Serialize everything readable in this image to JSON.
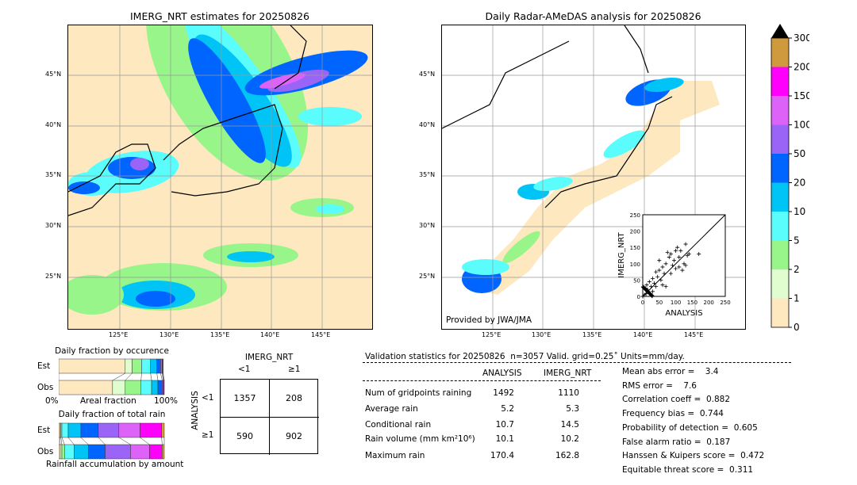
{
  "left_map": {
    "title": "IMERG_NRT estimates for 20250826",
    "lat_labels": [
      "45°N",
      "40°N",
      "35°N",
      "30°N",
      "25°N"
    ],
    "lon_labels": [
      "125°E",
      "130°E",
      "135°E",
      "140°E",
      "145°E"
    ]
  },
  "right_map": {
    "title": "Daily Radar-AMeDAS analysis for 20250826",
    "lat_labels": [
      "45°N",
      "40°N",
      "35°N",
      "30°N",
      "25°N"
    ],
    "lon_labels": [
      "125°E",
      "130°E",
      "135°E",
      "140°E",
      "145°E"
    ],
    "credit": "Provided by JWA/JMA"
  },
  "colorbar": {
    "ticks": [
      "0",
      "1",
      "2",
      "5",
      "10",
      "20",
      "50",
      "100",
      "150",
      "200",
      "300"
    ],
    "colors": [
      "#fee8c0",
      "#e0fdd0",
      "#98f58a",
      "#5bfdfc",
      "#00c4f6",
      "#0064fe",
      "#9a65f7",
      "#dd62f8",
      "#fe00fc",
      "#cf9a3e"
    ],
    "extend_color": "#000000"
  },
  "chart_data": [
    {
      "type": "scatter",
      "xlabel": "ANALYSIS",
      "ylabel": "IMERG_NRT",
      "xlim": [
        0,
        250
      ],
      "ylim": [
        0,
        250
      ],
      "ticks": [
        "0",
        "50",
        "100",
        "150",
        "200",
        "250"
      ],
      "diagonal": true,
      "points": [
        [
          5,
          5
        ],
        [
          10,
          8
        ],
        [
          15,
          20
        ],
        [
          20,
          10
        ],
        [
          8,
          25
        ],
        [
          25,
          30
        ],
        [
          30,
          15
        ],
        [
          12,
          35
        ],
        [
          35,
          40
        ],
        [
          40,
          30
        ],
        [
          45,
          60
        ],
        [
          50,
          80
        ],
        [
          55,
          50
        ],
        [
          60,
          90
        ],
        [
          65,
          70
        ],
        [
          70,
          100
        ],
        [
          75,
          135
        ],
        [
          80,
          120
        ],
        [
          85,
          130
        ],
        [
          90,
          95
        ],
        [
          95,
          110
        ],
        [
          100,
          85
        ],
        [
          105,
          150
        ],
        [
          110,
          120
        ],
        [
          115,
          140
        ],
        [
          120,
          80
        ],
        [
          125,
          100
        ],
        [
          130,
          160
        ],
        [
          135,
          125
        ],
        [
          140,
          130
        ],
        [
          170,
          130
        ],
        [
          60,
          35
        ],
        [
          70,
          30
        ],
        [
          40,
          75
        ],
        [
          30,
          55
        ],
        [
          20,
          45
        ],
        [
          50,
          110
        ],
        [
          85,
          70
        ],
        [
          100,
          140
        ],
        [
          110,
          90
        ],
        [
          130,
          95
        ]
      ]
    },
    {
      "type": "bar",
      "title": "Daily fraction by occurence",
      "categories": [
        "Est",
        "Obs"
      ],
      "xlabel": "Areal fraction",
      "x_ticks": [
        "0%",
        "100%"
      ],
      "stacked_percent": {
        "Est": [
          63,
          6.5,
          9,
          8.5,
          6,
          3.5,
          1.5,
          0.5,
          0.5
        ],
        "Obs": [
          51,
          12,
          15,
          10,
          6,
          4,
          1,
          0.5,
          0.5
        ]
      }
    },
    {
      "type": "bar",
      "title": "Daily fraction of total rain",
      "categories": [
        "Est",
        "Obs"
      ],
      "xlabel": "Rainfall accumulation by amount",
      "stacked_percent": {
        "Est": [
          1,
          1,
          1,
          6,
          12,
          16.5,
          19.5,
          20,
          20.5,
          2.5
        ],
        "Obs": [
          1.5,
          1.5,
          2.5,
          9,
          13.5,
          16,
          24,
          18,
          12,
          2
        ]
      }
    }
  ],
  "contingency": {
    "col_title": "IMERG_NRT",
    "row_title": "ANALYSIS",
    "col_labels": [
      "<1",
      "≥1"
    ],
    "row_labels": [
      "<1",
      "≥1"
    ],
    "values": [
      [
        "1357",
        "208"
      ],
      [
        "590",
        "902"
      ]
    ]
  },
  "stats": {
    "header": "Validation statistics for 20250826  n=3057 Valid. grid=0.25˚ Units=mm/day.",
    "col_analysis": "ANALYSIS",
    "col_imerg": "IMERG_NRT",
    "rows": [
      {
        "label": "Num of gridpoints raining",
        "a": "1492",
        "b": "1110"
      },
      {
        "label": "Average rain",
        "a": "5.2",
        "b": "5.3"
      },
      {
        "label": "Conditional rain",
        "a": "10.7",
        "b": "14.5"
      },
      {
        "label": "Rain volume (mm km²10⁶)",
        "a": "10.1",
        "b": "10.2"
      },
      {
        "label": "Maximum rain",
        "a": "170.4",
        "b": "162.8"
      }
    ],
    "scores": [
      "Mean abs error =    3.4",
      "RMS error =    7.6",
      "Correlation coeff =  0.882",
      "Frequency bias =  0.744",
      "Probability of detection =  0.605",
      "False alarm ratio =  0.187",
      "Hanssen & Kuipers score =  0.472",
      "Equitable threat score =  0.311"
    ]
  }
}
